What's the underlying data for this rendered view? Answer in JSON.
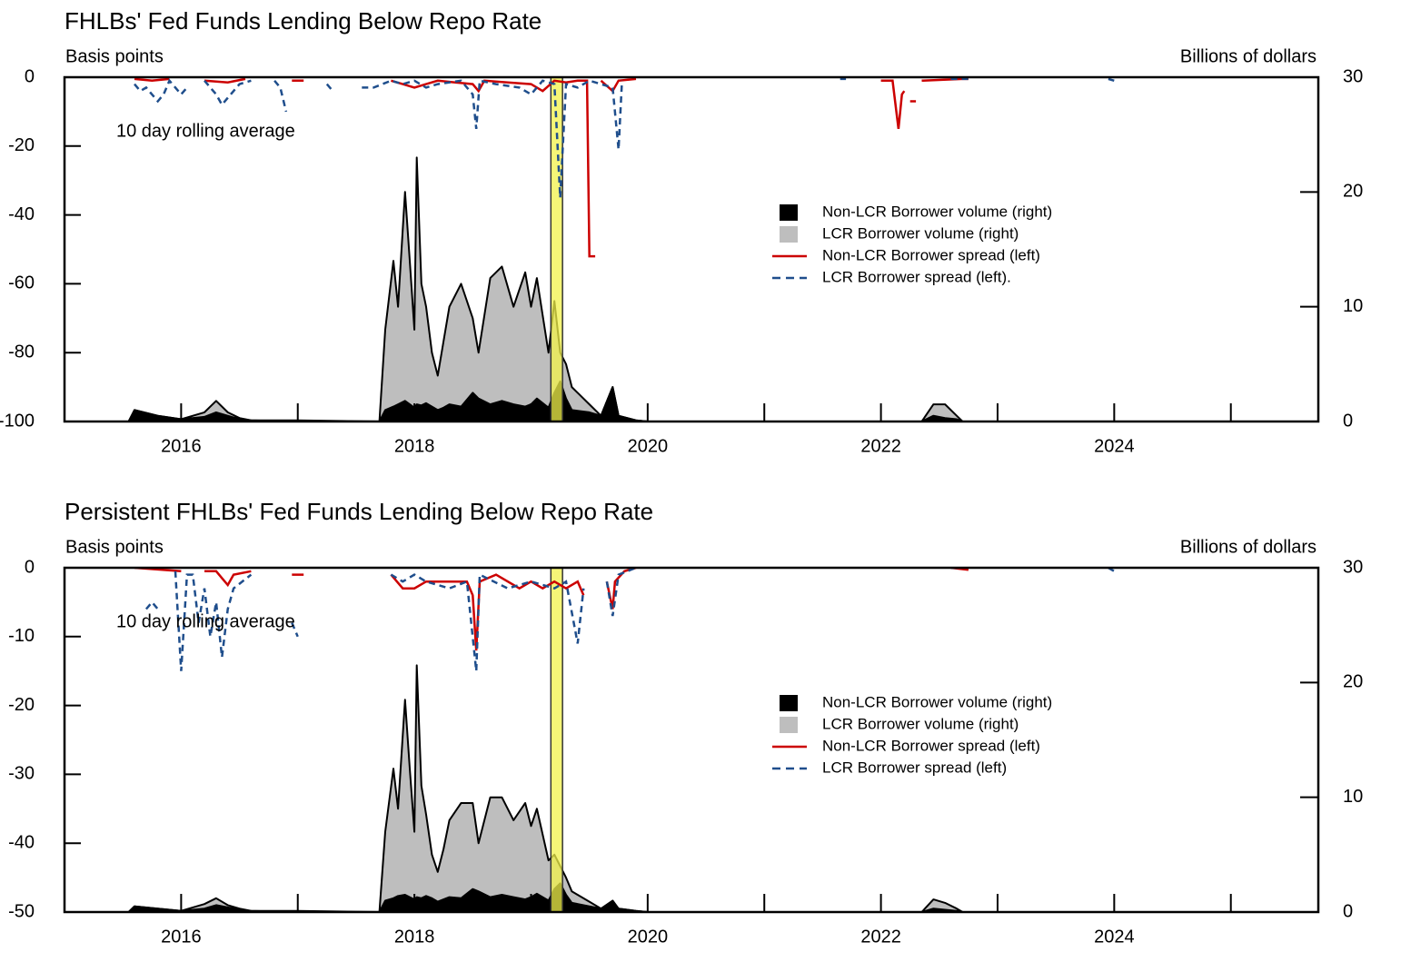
{
  "chart_data": [
    {
      "type": "area-line",
      "title": "FHLBs' Fed Funds Lending Below Repo Rate",
      "y_label": "Basis points",
      "y2_label": "Billions of dollars",
      "annotation": "10 day rolling average",
      "xlim": [
        2015,
        2025.75
      ],
      "xticks": [
        2016,
        2018,
        2020,
        2022,
        2024
      ],
      "xminorticks": [
        2015,
        2017,
        2019,
        2021,
        2023,
        2025
      ],
      "ylim": [
        -100,
        0
      ],
      "yticks": [
        0,
        -20,
        -40,
        -60,
        -80,
        -100
      ],
      "y2lim": [
        0,
        30
      ],
      "y2ticks": [
        0,
        10,
        20,
        30
      ],
      "legend": "center-right",
      "highlight": {
        "x": [
          2019.17,
          2019.27
        ],
        "color": "#f2f24a"
      },
      "series": [
        {
          "name": "Non-LCR Borrower volume (right)",
          "color": "#000000",
          "style": "area",
          "axis": "y2",
          "x": [
            2015.55,
            2015.6,
            2015.8,
            2016.0,
            2016.2,
            2016.3,
            2016.4,
            2016.5,
            2016.6,
            2017.0,
            2017.7,
            2017.75,
            2017.82,
            2017.86,
            2017.92,
            2017.96,
            2018.0,
            2018.02,
            2018.06,
            2018.1,
            2018.15,
            2018.2,
            2018.25,
            2018.3,
            2018.4,
            2018.5,
            2018.55,
            2018.65,
            2018.75,
            2018.85,
            2018.95,
            2019.0,
            2019.05,
            2019.15,
            2019.2,
            2019.25,
            2019.3,
            2019.35,
            2019.5,
            2019.6,
            2019.7,
            2019.75,
            2019.9,
            2020.0,
            2022.35,
            2022.45,
            2022.55,
            2022.65,
            2022.7,
            2025.7
          ],
          "values": [
            0,
            1,
            0.5,
            0.2,
            0.4,
            0.8,
            0.5,
            0.2,
            0.1,
            0,
            0,
            1,
            1.3,
            1.5,
            1.8,
            1.5,
            1.2,
            1.5,
            1.4,
            1.6,
            1.3,
            1,
            1.2,
            1.5,
            1.3,
            2.5,
            2,
            1.5,
            1.8,
            1.5,
            1.3,
            1.5,
            2,
            1.2,
            2.5,
            3.5,
            2,
            1,
            0.8,
            0.5,
            3,
            0.5,
            0.1,
            0,
            0,
            0.5,
            0.3,
            0.2,
            0,
            0
          ]
        },
        {
          "name": "LCR Borrower volume (right)",
          "color": "#bebebe",
          "style": "area",
          "axis": "y2",
          "x": [
            2015.55,
            2015.6,
            2015.8,
            2016.0,
            2016.2,
            2016.3,
            2016.4,
            2016.5,
            2016.6,
            2017.0,
            2017.7,
            2017.75,
            2017.82,
            2017.86,
            2017.92,
            2017.96,
            2018.0,
            2018.02,
            2018.06,
            2018.1,
            2018.15,
            2018.2,
            2018.25,
            2018.3,
            2018.4,
            2018.5,
            2018.55,
            2018.65,
            2018.75,
            2018.85,
            2018.95,
            2019.0,
            2019.05,
            2019.15,
            2019.2,
            2019.25,
            2019.3,
            2019.35,
            2019.5,
            2019.6,
            2019.7,
            2019.75,
            2019.9,
            2020.0,
            2022.35,
            2022.45,
            2022.55,
            2022.65,
            2022.7,
            2025.7
          ],
          "values": [
            0,
            0,
            0,
            0,
            0.4,
            1,
            0.3,
            0.1,
            0,
            0.1,
            0,
            7,
            12.7,
            8.5,
            18.2,
            12.5,
            6.8,
            21.5,
            10.6,
            8.4,
            4.7,
            3,
            5.8,
            8.5,
            10.7,
            6.5,
            4,
            11,
            11.7,
            8.5,
            11.7,
            8.5,
            10.5,
            4.8,
            8,
            2.5,
            3,
            2,
            0.7,
            0,
            0,
            0,
            0,
            0,
            0,
            1,
            1.2,
            0.3,
            0,
            0
          ]
        },
        {
          "name": "Non-LCR Borrower spread (left)",
          "color": "#cc0000",
          "style": "line",
          "axis": "y",
          "x": [
            2015.6,
            2015.75,
            2015.9,
            null,
            2016.2,
            2016.4,
            2016.55,
            null,
            2016.95,
            2017.05,
            null,
            2017.8,
            2017.9,
            2018.0,
            2018.1,
            2018.2,
            2018.35,
            2018.5,
            2018.55,
            2018.6,
            2018.8,
            2019.0,
            2019.1,
            2019.2,
            2019.3,
            2019.4,
            2019.48,
            2019.5,
            2019.55,
            null,
            2019.6,
            2019.7,
            2019.75,
            2019.9,
            null,
            2022.0,
            2022.1,
            2022.15,
            2022.18,
            2022.2,
            null,
            2022.25,
            2022.3,
            null,
            2022.35,
            2022.7,
            2022.75
          ],
          "values": [
            -0.5,
            -1,
            -0.5,
            null,
            -1,
            -1.5,
            -0.5,
            null,
            -1,
            -1,
            null,
            -1,
            -2,
            -3,
            -2,
            -1,
            -1.5,
            -2,
            -4,
            -1,
            -1.5,
            -2,
            -4,
            -1,
            -1.5,
            -1,
            -1,
            -52,
            -52,
            null,
            -1,
            -4,
            -1,
            -0.5,
            null,
            -1,
            -1,
            -15,
            -5,
            -4,
            null,
            -7,
            -7,
            null,
            -1,
            -0.5,
            -0.5
          ]
        },
        {
          "name": "LCR Borrower spread (left).",
          "color": "#1f4e8c",
          "style": "dashed",
          "axis": "y",
          "x": [
            2015.6,
            2015.65,
            2015.7,
            2015.8,
            2015.85,
            2015.9,
            2016.0,
            2016.05,
            null,
            2016.2,
            2016.3,
            2016.35,
            2016.4,
            2016.45,
            2016.5,
            2016.6,
            null,
            2016.8,
            2016.85,
            2016.9,
            null,
            2017.25,
            2017.3,
            null,
            2017.55,
            2017.65,
            2017.8,
            2017.9,
            2018.0,
            2018.1,
            2018.2,
            2018.4,
            2018.5,
            2018.53,
            2018.56,
            2018.7,
            2018.9,
            2019.0,
            2019.1,
            2019.2,
            2019.25,
            2019.3,
            2019.4,
            2019.5,
            2019.6,
            2019.7,
            2019.75,
            2019.78,
            null,
            2021.65,
            2021.7,
            null,
            2022.6,
            2022.75,
            null,
            2023.95,
            2024.0
          ],
          "values": [
            -2,
            -4,
            -3,
            -7,
            -5,
            -1,
            -5,
            -3,
            null,
            -1,
            -5,
            -8,
            -6,
            -4,
            -2,
            -1,
            null,
            -1,
            -3,
            -10,
            null,
            -2,
            -4,
            null,
            -3,
            -3,
            -1,
            -2,
            -1,
            -3,
            -2,
            -1,
            -5,
            -15,
            -1,
            -2,
            -3,
            -5,
            -1,
            -2,
            -35,
            -2,
            -3,
            -1,
            -2,
            -3,
            -21,
            -1,
            null,
            -0.5,
            -0.5,
            null,
            -0.5,
            -0.5,
            null,
            -0.5,
            -1
          ]
        }
      ]
    },
    {
      "type": "area-line",
      "title": "Persistent FHLBs' Fed Funds Lending Below Repo Rate",
      "y_label": "Basis points",
      "y2_label": "Billions of dollars",
      "annotation": "10 day rolling average",
      "xlim": [
        2015,
        2025.75
      ],
      "xticks": [
        2016,
        2018,
        2020,
        2022,
        2024
      ],
      "xminorticks": [
        2015,
        2017,
        2019,
        2021,
        2023,
        2025
      ],
      "ylim": [
        -50,
        0
      ],
      "yticks": [
        0,
        -10,
        -20,
        -30,
        -40,
        -50
      ],
      "y2lim": [
        0,
        30
      ],
      "y2ticks": [
        0,
        10,
        20,
        30
      ],
      "legend": "center-right",
      "highlight": {
        "x": [
          2019.17,
          2019.27
        ],
        "color": "#f2f24a"
      },
      "series": [
        {
          "name": "Non-LCR Borrower volume (right)",
          "color": "#000000",
          "style": "area",
          "axis": "y2",
          "x": [
            2015.55,
            2015.6,
            2015.8,
            2016.0,
            2016.2,
            2016.3,
            2016.4,
            2016.5,
            2016.6,
            2017.0,
            2017.7,
            2017.75,
            2017.82,
            2017.86,
            2017.92,
            2017.96,
            2018.0,
            2018.02,
            2018.06,
            2018.1,
            2018.15,
            2018.2,
            2018.25,
            2018.3,
            2018.4,
            2018.5,
            2018.55,
            2018.65,
            2018.75,
            2018.85,
            2018.95,
            2019.0,
            2019.05,
            2019.15,
            2019.2,
            2019.25,
            2019.3,
            2019.35,
            2019.5,
            2019.6,
            2019.7,
            2019.75,
            2019.9,
            2020.0,
            2022.35,
            2022.45,
            2022.55,
            2022.65,
            2022.7,
            2025.7
          ],
          "values": [
            0,
            0.5,
            0.3,
            0.1,
            0.3,
            0.6,
            0.4,
            0.2,
            0.1,
            0,
            0,
            1,
            1.2,
            1.4,
            1.5,
            1.3,
            1.1,
            1.3,
            1.2,
            1.4,
            1.2,
            0.9,
            1.1,
            1.3,
            1.2,
            2,
            1.8,
            1.3,
            1.5,
            1.3,
            1.1,
            1.3,
            1.6,
            1,
            2,
            2.5,
            1.5,
            0.8,
            0.5,
            0.3,
            0.8,
            0.3,
            0.1,
            0,
            0,
            0.3,
            0.2,
            0.1,
            0,
            0
          ]
        },
        {
          "name": "LCR Borrower volume (right)",
          "color": "#bebebe",
          "style": "area",
          "axis": "y2",
          "x": [
            2015.55,
            2015.6,
            2015.8,
            2016.0,
            2016.2,
            2016.3,
            2016.4,
            2016.5,
            2016.6,
            2017.0,
            2017.7,
            2017.75,
            2017.82,
            2017.86,
            2017.92,
            2017.96,
            2018.0,
            2018.02,
            2018.06,
            2018.1,
            2018.15,
            2018.2,
            2018.25,
            2018.3,
            2018.4,
            2018.5,
            2018.55,
            2018.65,
            2018.75,
            2018.85,
            2018.95,
            2019.0,
            2019.05,
            2019.15,
            2019.2,
            2019.25,
            2019.3,
            2019.35,
            2019.5,
            2019.6,
            2019.7,
            2019.75,
            2019.9,
            2020.0,
            2022.35,
            2022.45,
            2022.55,
            2022.65,
            2022.7,
            2025.7
          ],
          "values": [
            0,
            0,
            0,
            0,
            0.4,
            0.6,
            0.2,
            0.1,
            0,
            0.1,
            0,
            6,
            11.3,
            7.6,
            17,
            11.2,
            5.9,
            20.2,
            9.8,
            7.1,
            3.8,
            2.6,
            4.4,
            6.7,
            8.3,
            7.5,
            4.2,
            8.7,
            8.5,
            6.7,
            8.4,
            6.2,
            7.4,
            3.5,
            3,
            1.5,
            1.5,
            1,
            0.4,
            0,
            0.2,
            0,
            0,
            0,
            0,
            0.8,
            0.6,
            0.2,
            0,
            0
          ]
        },
        {
          "name": "Non-LCR Borrower spread  (left)",
          "color": "#cc0000",
          "style": "line",
          "axis": "y",
          "x": [
            2015.6,
            2016.0,
            null,
            2016.2,
            2016.3,
            2016.35,
            2016.4,
            2016.45,
            2016.6,
            null,
            2016.95,
            2017.05,
            null,
            2017.8,
            2017.9,
            2018.0,
            2018.1,
            2018.3,
            2018.45,
            2018.5,
            2018.53,
            2018.56,
            2018.7,
            2018.9,
            2019.0,
            2019.1,
            2019.2,
            2019.3,
            2019.4,
            2019.45,
            null,
            2019.65,
            2019.7,
            2019.72,
            2019.8,
            2019.9,
            null,
            2022.6,
            2022.75
          ],
          "values": [
            0,
            -0.5,
            null,
            -0.5,
            -0.5,
            -1.5,
            -2.5,
            -1,
            -0.5,
            null,
            -1,
            -1,
            null,
            -1,
            -3,
            -3,
            -2,
            -2,
            -2,
            -4,
            -12,
            -2,
            -1,
            -3,
            -2,
            -3,
            -2,
            -3,
            -2,
            -4,
            null,
            -2,
            -6,
            -2,
            -0.5,
            0,
            null,
            0,
            -0.3
          ]
        },
        {
          "name": "LCR Borrower spread (left)",
          "color": "#1f4e8c",
          "style": "dashed",
          "axis": "y",
          "x": [
            2015.6,
            null,
            2015.7,
            2015.75,
            2015.8,
            null,
            2015.95,
            2016.0,
            2016.05,
            2016.1,
            2016.15,
            2016.2,
            2016.25,
            2016.3,
            2016.35,
            2016.4,
            2016.45,
            2016.6,
            null,
            2016.95,
            2017.0,
            null,
            2017.8,
            2017.9,
            2018.0,
            2018.1,
            2018.3,
            2018.45,
            2018.53,
            2018.56,
            2018.8,
            2019.0,
            2019.2,
            2019.3,
            2019.4,
            2019.45,
            null,
            2019.65,
            2019.7,
            2019.75,
            2019.9,
            null,
            2022.6,
            2022.7,
            null,
            2023.95,
            2024.0
          ],
          "values": [
            -2,
            null,
            -6,
            -5,
            -6,
            null,
            -0.5,
            -15,
            -1,
            -1,
            -8,
            -3,
            -10,
            -5,
            -13,
            -6,
            -3,
            -1,
            null,
            -8,
            -10,
            null,
            -1,
            -2,
            -1,
            -2,
            -3,
            -2,
            -15,
            -1,
            -3,
            -2,
            -3,
            -2,
            -11,
            -3,
            null,
            -2,
            -7,
            -1,
            0,
            null,
            0,
            0,
            null,
            0,
            -0.5
          ]
        }
      ]
    }
  ]
}
